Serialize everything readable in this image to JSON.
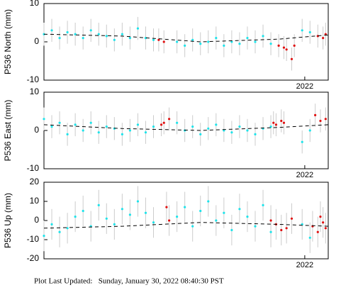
{
  "chart_data": [
    {
      "type": "scatter",
      "ylabel": "P536 North (mm)",
      "ylim": [
        -10,
        10
      ],
      "yticks": [
        -10,
        0,
        10
      ],
      "xlim": [
        2021.0,
        2022.09
      ],
      "xticks": [
        2022
      ],
      "series": [
        {
          "color": "#1fe3ea",
          "error": 3,
          "x": [
            2021.0,
            2021.03,
            2021.06,
            2021.09,
            2021.12,
            2021.15,
            2021.18,
            2021.21,
            2021.24,
            2021.27,
            2021.3,
            2021.33,
            2021.36,
            2021.39,
            2021.42,
            2021.51,
            2021.54,
            2021.57,
            2021.6,
            2021.63,
            2021.66,
            2021.69,
            2021.72,
            2021.75,
            2021.78,
            2021.81,
            2021.84,
            2021.87,
            2021.99,
            2022.02
          ],
          "values": [
            2,
            3,
            1,
            2.5,
            2,
            1,
            3,
            2,
            1.5,
            0.5,
            2,
            1,
            3.5,
            1,
            0.5,
            0,
            -1,
            0.5,
            -0.5,
            0,
            1,
            -1,
            0,
            -0.5,
            1,
            0,
            1.5,
            -0.5,
            3,
            2.5
          ]
        },
        {
          "color": "#e01010",
          "error": 3,
          "x": [
            2021.44,
            2021.46,
            2021.9,
            2021.92,
            2021.93,
            2021.95,
            2021.96,
            2022.05,
            2022.07,
            2022.08
          ],
          "values": [
            0.5,
            0,
            -1,
            -1.5,
            -2,
            -4.5,
            -1,
            1.5,
            1,
            2
          ]
        }
      ],
      "trend": {
        "x": [
          2021.0,
          2021.3,
          2021.6,
          2021.9,
          2022.09
        ],
        "values": [
          2,
          1.5,
          0,
          0.7,
          1.8
        ]
      }
    },
    {
      "type": "scatter",
      "ylabel": "P536 East (mm)",
      "ylim": [
        -10,
        10
      ],
      "yticks": [
        -10,
        0,
        10
      ],
      "xlim": [
        2021.0,
        2022.09
      ],
      "xticks": [
        2022
      ],
      "series": [
        {
          "color": "#1fe3ea",
          "error": 3,
          "x": [
            2021.0,
            2021.03,
            2021.06,
            2021.09,
            2021.12,
            2021.15,
            2021.18,
            2021.21,
            2021.24,
            2021.27,
            2021.3,
            2021.33,
            2021.36,
            2021.39,
            2021.42,
            2021.51,
            2021.54,
            2021.57,
            2021.6,
            2021.63,
            2021.66,
            2021.69,
            2021.72,
            2021.75,
            2021.78,
            2021.81,
            2021.84,
            2021.87,
            2021.99,
            2022.02
          ],
          "values": [
            3,
            1,
            2,
            -1,
            1.5,
            0,
            2,
            -0.5,
            1,
            0.5,
            -1,
            0,
            1.5,
            -0.5,
            1,
            2,
            0,
            1,
            -1,
            0.5,
            1.5,
            0,
            -0.5,
            1,
            0,
            -1,
            0.5,
            1,
            -3,
            0
          ]
        },
        {
          "color": "#e01010",
          "error": 3,
          "x": [
            2021.45,
            2021.46,
            2021.48,
            2021.88,
            2021.89,
            2021.91,
            2021.92,
            2022.04,
            2022.06,
            2022.08
          ],
          "values": [
            1.5,
            2,
            3,
            2,
            1.5,
            2.5,
            2,
            4,
            2.5,
            3
          ]
        }
      ],
      "trend": {
        "x": [
          2021.0,
          2021.3,
          2021.6,
          2021.9,
          2022.09
        ],
        "values": [
          1.5,
          0.5,
          0,
          0.8,
          1.5
        ]
      }
    },
    {
      "type": "scatter",
      "ylabel": "P536 Up (mm)",
      "ylim": [
        -20,
        20
      ],
      "yticks": [
        -20,
        -10,
        0,
        10,
        20
      ],
      "xlim": [
        2021.0,
        2022.09
      ],
      "xticks": [
        2022
      ],
      "series": [
        {
          "color": "#1fe3ea",
          "error": 8,
          "x": [
            2021.0,
            2021.03,
            2021.06,
            2021.09,
            2021.12,
            2021.15,
            2021.18,
            2021.21,
            2021.24,
            2021.27,
            2021.3,
            2021.33,
            2021.36,
            2021.39,
            2021.42,
            2021.51,
            2021.54,
            2021.57,
            2021.6,
            2021.63,
            2021.66,
            2021.69,
            2021.72,
            2021.75,
            2021.78,
            2021.81,
            2021.84,
            2021.87,
            2021.99,
            2022.02
          ],
          "values": [
            -8,
            -2,
            -6,
            -4,
            2,
            5,
            -3,
            8,
            1,
            -2,
            6,
            3,
            10,
            4,
            -1,
            2,
            7,
            -3,
            5,
            10,
            0,
            4,
            -5,
            6,
            2,
            -3,
            8,
            -6,
            -2,
            -9
          ]
        },
        {
          "color": "#e01010",
          "error": 8,
          "x": [
            2021.47,
            2021.48,
            2021.87,
            2021.89,
            2021.91,
            2021.93,
            2021.95,
            2022.03,
            2022.05,
            2022.06,
            2022.07,
            2022.08
          ],
          "values": [
            7,
            0,
            0,
            -2,
            -5,
            -4,
            1,
            -3,
            -6,
            2,
            -1,
            -4
          ]
        }
      ],
      "trend": {
        "x": [
          2021.0,
          2021.3,
          2021.6,
          2021.9,
          2022.09
        ],
        "values": [
          -4,
          -3,
          -1,
          -2,
          -3
        ]
      }
    }
  ],
  "footer": "Plot Last Updated:   Sunday, January 30, 2022 08:40:30 PST"
}
